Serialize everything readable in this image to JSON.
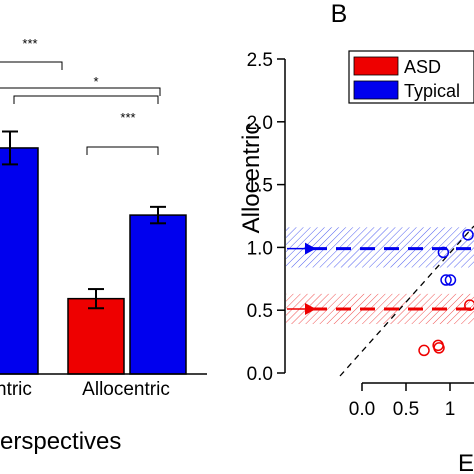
{
  "chart_data": [
    {
      "panel_label": "",
      "type": "bar",
      "title": "",
      "xlabel": "erspectives",
      "ylabel": "",
      "categories": [
        "ntric",
        "Allocentric"
      ],
      "series": [
        {
          "color": "#ee0000",
          "values": [
            null,
            0.55
          ],
          "errors": [
            null,
            0.07
          ]
        },
        {
          "color": "#0000ee",
          "values": [
            1.65,
            1.16
          ],
          "errors": [
            0.12,
            0.06
          ]
        }
      ],
      "significance": [
        {
          "label": "***"
        },
        {
          "label": "*"
        },
        {
          "label": "***"
        }
      ],
      "ylim": [
        0,
        2.5
      ],
      "grid": false
    },
    {
      "panel_label": "B",
      "type": "scatter",
      "title": "",
      "xlabel": "E",
      "ylabel": "Allocentric",
      "xlim": [
        -0.3,
        1.1
      ],
      "ylim": [
        -0.1,
        2.6
      ],
      "xticks": [
        "0.0",
        "0.5",
        "1"
      ],
      "yticks": [
        "0.0",
        "0.5",
        "1.0",
        "1.5",
        "2.0",
        "2.5"
      ],
      "legend": {
        "placement": "top-right",
        "entries": [
          {
            "name": "ASD",
            "color": "#ee0000"
          },
          {
            "name": "Typical",
            "color": "#0000ee"
          }
        ]
      },
      "series": [
        {
          "name": "ASD",
          "color": "#ee0000",
          "points": [
            [
              0.58,
              0.18
            ],
            [
              0.74,
              0.22
            ],
            [
              0.75,
              0.2
            ],
            [
              1.1,
              0.54
            ]
          ],
          "mean": 0.51,
          "band": [
            0.39,
            0.63
          ]
        },
        {
          "name": "Typical",
          "color": "#0000ee",
          "points": [
            [
              0.8,
              0.96
            ],
            [
              0.83,
              0.74
            ],
            [
              0.88,
              0.74
            ],
            [
              1.08,
              1.1
            ]
          ],
          "mean": 0.99,
          "band": [
            0.84,
            1.16
          ]
        }
      ],
      "identity_line": true,
      "grid": false
    }
  ]
}
